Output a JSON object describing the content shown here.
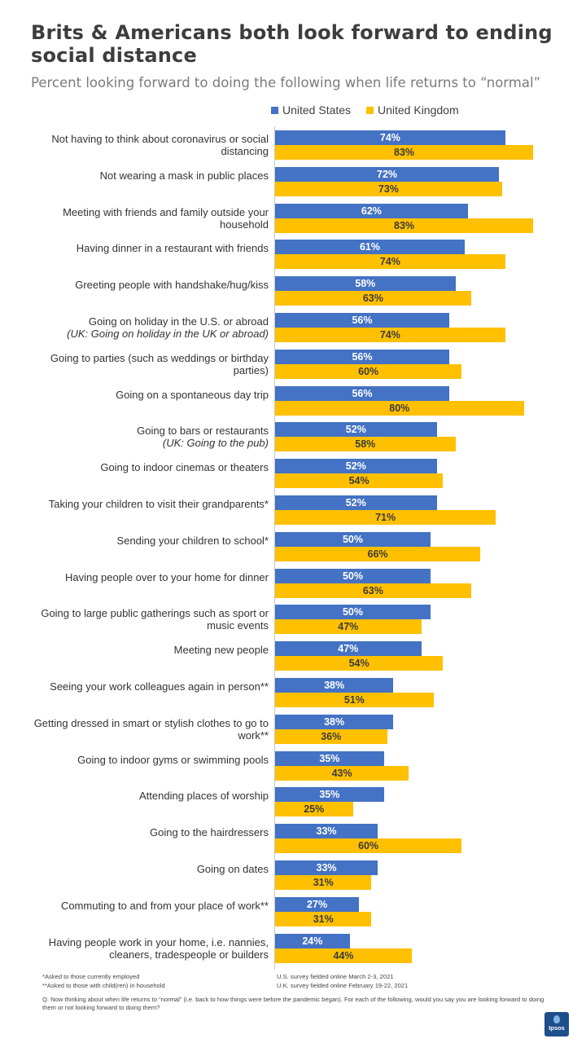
{
  "colors": {
    "us": "#4472C4",
    "uk": "#FFC000",
    "us_text": "#ffffff",
    "uk_text": "#3b3b3b"
  },
  "chart_data": {
    "type": "bar",
    "orientation": "horizontal",
    "title": "Brits & Americans both look forward to ending social distance",
    "subtitle": "Percent looking forward to doing the following when life returns to “normal”",
    "xlim": [
      0,
      100
    ],
    "unit": "%",
    "legend_position": "top",
    "categories": [
      {
        "text": "Not having to think about coronavirus or social distancing",
        "note": ""
      },
      {
        "text": "Not wearing a mask in public places",
        "note": ""
      },
      {
        "text": "Meeting with friends and family outside your household",
        "note": ""
      },
      {
        "text": "Having dinner in a restaurant with friends",
        "note": ""
      },
      {
        "text": "Greeting people with handshake/hug/kiss",
        "note": ""
      },
      {
        "text": "Going on holiday in the U.S. or abroad",
        "note": "(UK: Going on holiday in the UK or abroad)"
      },
      {
        "text": "Going to parties (such as weddings or birthday parties)",
        "note": ""
      },
      {
        "text": "Going on a spontaneous day trip",
        "note": ""
      },
      {
        "text": "Going to bars or restaurants",
        "note": "(UK: Going to the pub)"
      },
      {
        "text": "Going to indoor cinemas or theaters",
        "note": ""
      },
      {
        "text": "Taking your children to visit their grandparents*",
        "note": ""
      },
      {
        "text": "Sending your children to school*",
        "note": ""
      },
      {
        "text": "Having people over to your home for dinner",
        "note": ""
      },
      {
        "text": "Going to large public gatherings such as sport or music events",
        "note": ""
      },
      {
        "text": "Meeting new people",
        "note": ""
      },
      {
        "text": "Seeing your work colleagues again in person**",
        "note": ""
      },
      {
        "text": "Getting dressed in smart or stylish clothes to go to work**",
        "note": ""
      },
      {
        "text": "Going to indoor gyms or swimming pools",
        "note": ""
      },
      {
        "text": "Attending places of worship",
        "note": ""
      },
      {
        "text": "Going to the hairdressers",
        "note": ""
      },
      {
        "text": "Going on dates",
        "note": ""
      },
      {
        "text": "Commuting to and from your place of work**",
        "note": ""
      },
      {
        "text": "Having people work in your home, i.e. nannies, cleaners, tradespeople or builders",
        "note": ""
      }
    ],
    "series": [
      {
        "name": "United States",
        "values": [
          74,
          72,
          62,
          61,
          58,
          56,
          56,
          56,
          52,
          52,
          52,
          50,
          50,
          50,
          47,
          38,
          38,
          35,
          35,
          33,
          33,
          27,
          24
        ]
      },
      {
        "name": "United Kingdom",
        "values": [
          83,
          73,
          83,
          74,
          63,
          74,
          60,
          80,
          58,
          54,
          71,
          66,
          63,
          47,
          54,
          51,
          36,
          43,
          25,
          60,
          31,
          31,
          44
        ]
      }
    ]
  },
  "footnotes": {
    "left": [
      "*Asked  to those currently employed",
      "**Asked  to those with child(ren) in household"
    ],
    "right": [
      "U.S. survey fielded online March 2-3, 2021",
      "U.K. survey fielded online February 19-22, 2021"
    ],
    "question": "Q. Now thinking about when life returns to “normal” (i.e. back to how things were before the pandemic began). For each  of the following, would you say you are looking forward to doing them or not looking forward  to doing them?"
  },
  "logo_text": "Ipsos"
}
